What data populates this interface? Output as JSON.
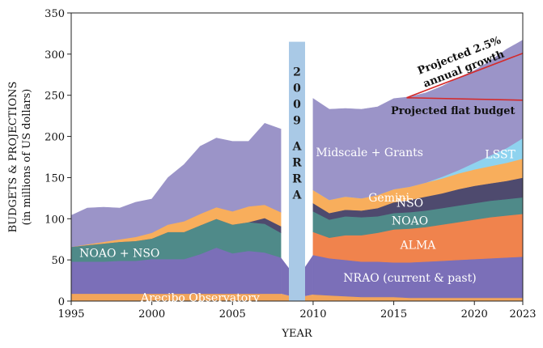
{
  "chart_data": {
    "type": "area",
    "xlabel": "YEAR",
    "ylabel": [
      "BUDGETS & PROJECTIONS",
      "(in millions of US dollars)"
    ],
    "xlim": [
      1995,
      2023
    ],
    "ylim": [
      0,
      350
    ],
    "xticks": [
      1995,
      2000,
      2005,
      2010,
      2015,
      2020,
      2023
    ],
    "yticks": [
      0,
      50,
      100,
      150,
      200,
      250,
      300,
      350
    ],
    "gap_years": [
      2008,
      2010
    ],
    "pre_years": [
      1995,
      1996,
      1997,
      1998,
      1999,
      2000,
      2001,
      2002,
      2003,
      2004,
      2005,
      2006,
      2007,
      2008
    ],
    "post_years": [
      2010,
      2011,
      2012,
      2013,
      2014,
      2015,
      2016,
      2017,
      2018,
      2019,
      2020,
      2021,
      2022,
      2023
    ],
    "series": [
      {
        "name": "Arecibo Observatory",
        "color": "#f2a55a",
        "pre": [
          9,
          9,
          9,
          9,
          9,
          9,
          9,
          9,
          9,
          9,
          9,
          9,
          9,
          9
        ],
        "post": [
          8,
          7,
          6,
          5,
          5,
          5,
          4,
          4,
          4,
          4,
          4,
          4,
          4,
          4
        ]
      },
      {
        "name": "NRAO (current & past)",
        "color": "#7b6fb8",
        "pre": [
          39,
          39,
          39,
          40,
          40,
          42,
          42,
          42,
          48,
          56,
          49,
          52,
          50,
          44
        ],
        "post": [
          48,
          45,
          44,
          43,
          43,
          42,
          43,
          44,
          45,
          46,
          47,
          48,
          49,
          50
        ]
      },
      {
        "name": "ALMA",
        "color": "#f0834d",
        "pre": [
          0,
          0,
          0,
          0,
          0,
          0,
          0,
          0,
          0,
          0,
          0,
          0,
          0,
          0
        ],
        "post": [
          28,
          25,
          30,
          32,
          35,
          40,
          41,
          42,
          44,
          46,
          48,
          50,
          51,
          52
        ]
      },
      {
        "name": "NOAO",
        "color": "#4f8a89",
        "pre": [
          0,
          0,
          0,
          0,
          0,
          0,
          0,
          0,
          0,
          0,
          0,
          0,
          0,
          0
        ],
        "post": [
          25,
          22,
          23,
          22,
          20,
          20,
          20,
          20,
          20,
          20,
          20,
          20,
          20,
          20
        ]
      },
      {
        "name": "NOAO + NSO",
        "color": "#4f8a89",
        "pre": [
          18,
          20,
          22,
          23,
          24,
          25,
          33,
          33,
          35,
          35,
          35,
          35,
          35,
          30
        ],
        "post": [
          0,
          0,
          0,
          0,
          0,
          0,
          0,
          0,
          0,
          0,
          0,
          0,
          0,
          0
        ]
      },
      {
        "name": "NSO",
        "color": "#4e4a6e",
        "pre": [
          0,
          0,
          0,
          0,
          0,
          0,
          0,
          0,
          0,
          0,
          0,
          0,
          7,
          8
        ],
        "post": [
          10,
          8,
          8,
          8,
          10,
          13,
          15,
          17,
          18,
          20,
          21,
          21,
          22,
          24
        ]
      },
      {
        "name": "Gemini",
        "color": "#f8ae5c",
        "pre": [
          0,
          1,
          2,
          3,
          5,
          7,
          9,
          13,
          14,
          14,
          16,
          19,
          16,
          17
        ],
        "post": [
          16,
          16,
          16,
          15,
          16,
          16,
          16,
          17,
          18,
          19,
          20,
          21,
          22,
          23
        ]
      },
      {
        "name": "LSST",
        "color": "#8fd3ef",
        "pre": [
          0,
          0,
          0,
          0,
          0,
          0,
          0,
          0,
          0,
          0,
          0,
          0,
          0,
          0
        ],
        "post": [
          0,
          0,
          0,
          0,
          0,
          0,
          0,
          0,
          2,
          4,
          8,
          13,
          18,
          25
        ]
      },
      {
        "name": "Midscale + Grants",
        "color": "#9b94c8",
        "pre": [
          38,
          44,
          42,
          38,
          42,
          41,
          57,
          69,
          82,
          84,
          85,
          79,
          99,
          101
        ],
        "post": [
          111,
          110,
          107,
          108,
          107,
          110,
          109,
          109,
          110,
          112,
          112,
          115,
          120,
          119
        ]
      }
    ],
    "arra": {
      "label": "2009 ARRA",
      "year": 2009,
      "value": 315,
      "color": "#a9c9e6"
    },
    "projections": [
      {
        "label": "Projected 2.5% annual growth",
        "color": "#d42a2a",
        "x": [
          2015.8,
          2023
        ],
        "y": [
          247,
          301
        ]
      },
      {
        "label": "Projected flat budget",
        "color": "#d42a2a",
        "x": [
          2015.8,
          2023
        ],
        "y": [
          247,
          244
        ]
      }
    ]
  }
}
